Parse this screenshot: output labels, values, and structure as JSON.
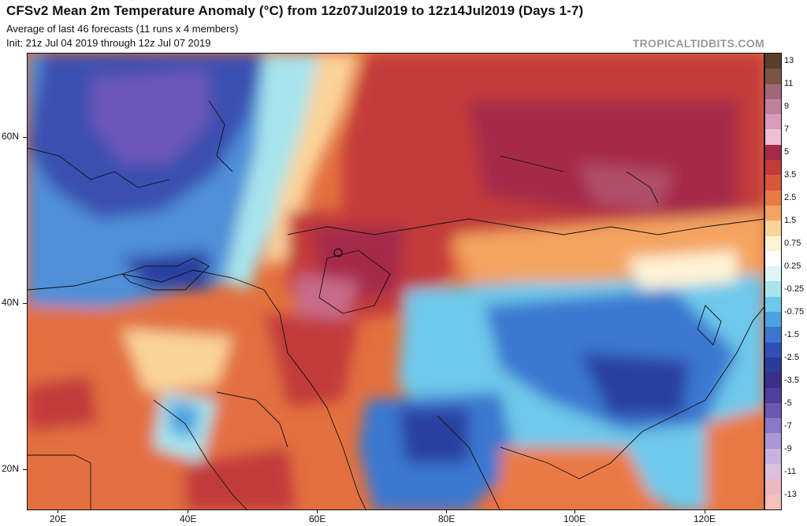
{
  "header": {
    "title": "CFSv2 Mean 2m Temperature Anomaly (°C) from 12z07Jul2019 to 12z14Jul2019 (Days 1-7)",
    "subtitle1": "Average of last 46 forecasts (11 runs x 4 members)",
    "subtitle2": "Init: 21z Jul 04 2019 through 12z Jul 07 2019",
    "brand": "TROPICALTIDBITS.COM"
  },
  "axes": {
    "lat_labels": [
      "60N",
      "40N",
      "20N"
    ],
    "lon_labels": [
      "20E",
      "40E",
      "60E",
      "80E",
      "100E",
      "120E"
    ]
  },
  "colorbar": {
    "labels": [
      "13",
      "11",
      "9",
      "7",
      "5",
      "3.5",
      "2.5",
      "1.5",
      "0.75",
      "0.25",
      "-0.25",
      "-0.75",
      "-1.5",
      "-2.5",
      "-3.5",
      "-5",
      "-7",
      "-9",
      "-11",
      "-13"
    ],
    "colors": [
      "#5a3d2b",
      "#7d5440",
      "#a0677a",
      "#c07f9c",
      "#d99bbb",
      "#f0bfd6",
      "#a52a4a",
      "#c23a3a",
      "#d8563a",
      "#ea7a45",
      "#f4a460",
      "#fbd49a",
      "#fff3d6",
      "#ffffff",
      "#dff4f4",
      "#a8e4ec",
      "#6ec8ea",
      "#4aa3e0",
      "#3a78d0",
      "#3050b8",
      "#283c98",
      "#3a2f8a",
      "#4e3f9e",
      "#6a58b4",
      "#8c78c8",
      "#aa96d8",
      "#c8b0e0",
      "#dcc0dc",
      "#ecb8c4",
      "#f4c0b8"
    ]
  }
}
